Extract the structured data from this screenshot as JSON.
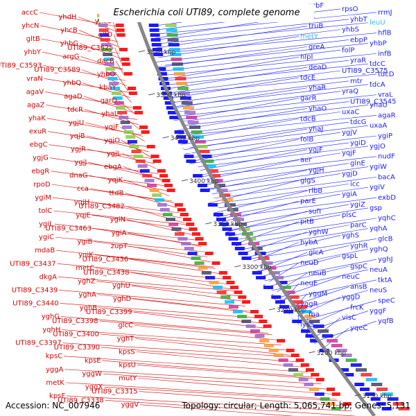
{
  "title": "Escherichia coli UTI89, complete genome",
  "accession_label": "Accession: NC_007946",
  "summary_label": "Topology: circular; Length: 5,065,741 bp; Genes: 5,131",
  "colors": {
    "forward_label": "#d40000",
    "reverse_label": "#1a1aff",
    "special_label": "#33bbee",
    "pink_label": "#e79bd7",
    "ruler_text": "#333333",
    "backbone": "#888888",
    "tick": "#2e8b2e"
  },
  "ruler": [
    {
      "label": "3550 kbp"
    },
    {
      "label": "3500 kbp"
    },
    {
      "label": "3450 kbp"
    },
    {
      "label": "3400 kbp"
    },
    {
      "label": "3350 kbp"
    },
    {
      "label": "3300 kbp"
    },
    {
      "label": "3250 kbp"
    },
    {
      "label": "3200 kbp"
    },
    {
      "label": "3150 kbp"
    }
  ],
  "left_labels": [
    "accC",
    "yhdH",
    "yhcS",
    "yhcN",
    "yhcB",
    "gltD",
    "gltB",
    "yhbG",
    "UTI89_C3625",
    "yhbY",
    "argG",
    "dacB",
    "UTI89_C3593",
    "UTI89_C3589",
    "yhbO",
    "vraN",
    "yhbQ",
    "kbaY",
    "agaV",
    "agaD",
    "garD",
    "agaZ",
    "tdcR",
    "yhaL",
    "yhaK",
    "ygjU",
    "yqjF",
    "exuR",
    "yqjB",
    "ygjO",
    "ebgC",
    "ygjR",
    "ygjL",
    "ygjG",
    "ygjJ",
    "ebgA",
    "ebgR",
    "dnaG",
    "yqjK",
    "rpoD",
    "cca",
    "ttdB",
    "ygiM",
    "yqjH",
    "UTI89_C3482",
    "tolC",
    "yqjE",
    "ygiN",
    "ygiL",
    "UTI89_C3463",
    "ygiA",
    "ygiC",
    "ygiB",
    "zupT",
    "mdaB",
    "yqiK",
    "UTI89_C3436",
    "UTI89_C3437",
    "metC",
    "UTI89_C3438",
    "dkgA",
    "yghZ",
    "yghU",
    "UTI89_C3439",
    "yghA",
    "yghD",
    "UTI89_C3440",
    "yghB",
    "UTI89_C3399",
    "yghG",
    "UTI89_C3398",
    "glcC",
    "yqhH",
    "UTI89_C3400",
    "yghT",
    "UTI89_C3397",
    "UTI89_C3390",
    "kpsS",
    "kpsC",
    "kpsE",
    "kpsU",
    "yggA",
    "yggW",
    "mutY",
    "metK",
    "yggX",
    "UTI89_C3315",
    "kpsF",
    "UTI89_C3338",
    "yggV"
  ],
  "right_labels": [
    "yrbF",
    "rpsO",
    "rrmJ",
    "rbfA",
    "yhbT",
    "leuU",
    "truB",
    "yhbS",
    "hflB",
    "metY",
    "ebpP",
    "yhbP",
    "greA",
    "folP",
    "infB",
    "nlpI",
    "yraR",
    "tdcC",
    "deaD",
    "UTI89_C3575",
    "tdcD",
    "tdcE",
    "mtr",
    "tdcA",
    "yhaR",
    "yraQ",
    "vraL",
    "garR",
    "UTI89_C3545",
    "yhaU",
    "yhaO",
    "uxaC",
    "agaR",
    "tdcB",
    "tdcG",
    "uxaA",
    "yhaJ",
    "ygjV",
    "ygiP",
    "folB",
    "ygiD",
    "ygjO",
    "ygjF",
    "yqjF",
    "nudF",
    "aer",
    "glnE",
    "ygiW",
    "ygjH",
    "ygjD",
    "bacA",
    "glgS",
    "icc",
    "ygiV",
    "rlbB",
    "ygiA",
    "exbD",
    "parE",
    "ygiZ",
    "gsp",
    "sufI",
    "plsC",
    "yqhC",
    "pitB",
    "parC",
    "yqhA",
    "yghW",
    "yghS",
    "glcB",
    "hybA",
    "yghR",
    "yghQ",
    "glcA",
    "gspL",
    "yghJ",
    "neuD",
    "gspC",
    "neuA",
    "neuB",
    "neuC",
    "tktA",
    "neuE",
    "ansB",
    "neuS",
    "yggM",
    "yggD",
    "speC",
    "yggR",
    "frcK",
    "yggF",
    "fba",
    "visC",
    "yqfB",
    "lysS",
    "yqeC"
  ]
}
